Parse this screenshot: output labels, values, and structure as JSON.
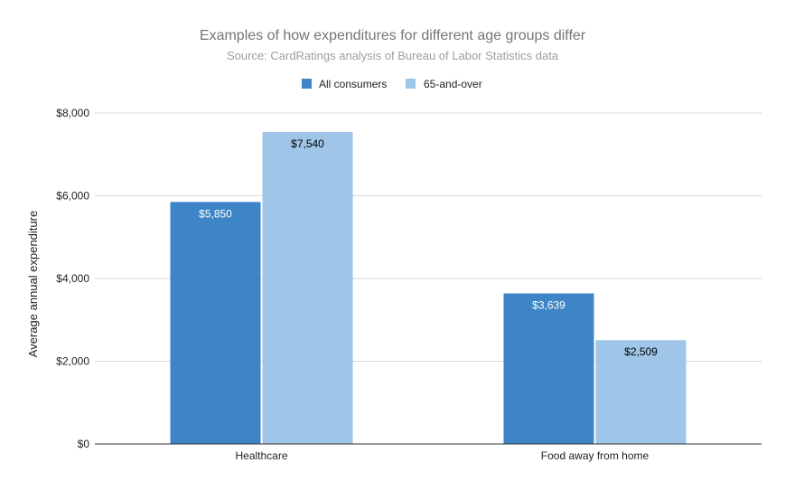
{
  "chart_data": {
    "type": "bar",
    "title": "Examples of how expenditures for different age groups differ",
    "subtitle": "Source: CardRatings analysis of Bureau of Labor Statistics data",
    "xlabel": "",
    "ylabel": "Average annual expenditure",
    "categories": [
      "Healthcare",
      "Food away from home"
    ],
    "series": [
      {
        "name": "All consumers",
        "values": [
          5850,
          3639
        ],
        "value_labels": [
          "$5,850",
          "$3,639"
        ],
        "color": "#3d85c6",
        "label_color": "#ffffff"
      },
      {
        "name": "65-and-over",
        "values": [
          7540,
          2509
        ],
        "value_labels": [
          "$7,540",
          "$2,509"
        ],
        "color": "#9fc5e8",
        "label_color": "#000000"
      }
    ],
    "ylim": [
      0,
      8000
    ],
    "yticks": [
      0,
      2000,
      4000,
      6000,
      8000
    ],
    "ytick_labels": [
      "$0",
      "$2,000",
      "$4,000",
      "$6,000",
      "$8,000"
    ],
    "grid": true,
    "legend_position": "top-center",
    "colors": {
      "gridline": "#d9d9d9",
      "axis": "#333333",
      "title": "#757575",
      "subtitle": "#9e9e9e"
    }
  }
}
